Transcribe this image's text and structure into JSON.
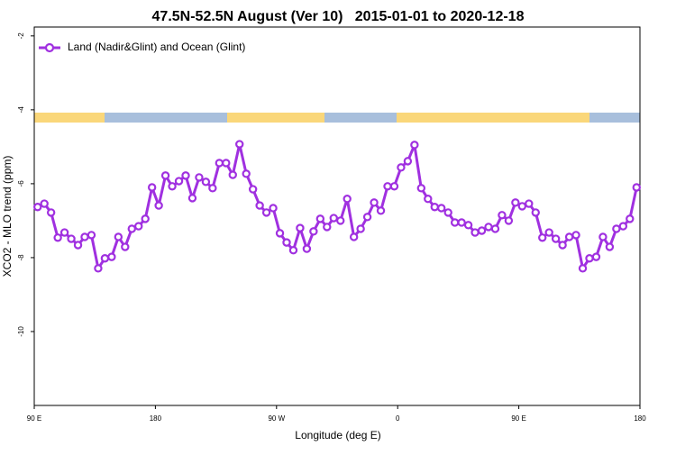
{
  "chart_data": {
    "type": "line",
    "title": "47.5N-52.5N August (Ver 10)   2015-01-01 to 2020-12-18",
    "x_label": "Longitude (deg E)",
    "y_label": "XCO2 - MLO trend (ppm)",
    "xlim": [
      90,
      540
    ],
    "xticks": [
      {
        "value": 90,
        "label": "90 E"
      },
      180,
      {
        "value": 270,
        "label": "90 W"
      },
      {
        "value": 360,
        "label": "0"
      },
      {
        "value": 450,
        "label": "90 E"
      },
      {
        "value": 540,
        "label": "180"
      }
    ],
    "ylim": [
      -12,
      -1.76
    ],
    "yticks": [
      -2,
      -4,
      -6,
      -8,
      -10
    ],
    "grid": false,
    "legend": "top-left",
    "x": [
      92.5,
      97.5,
      102.5,
      107.5,
      112.5,
      117.5,
      122.5,
      127.5,
      132.5,
      137.5,
      142.5,
      147.5,
      152.5,
      157.5,
      162.5,
      167.5,
      172.5,
      177.5,
      182.5,
      187.5,
      192.5,
      197.5,
      202.5,
      207.5,
      212.5,
      217.5,
      222.5,
      227.5,
      232.5,
      237.5,
      242.5,
      247.5,
      252.5,
      257.5,
      262.5,
      267.5,
      272.5,
      277.5,
      282.5,
      287.5,
      292.5,
      297.5,
      302.5,
      307.5,
      312.5,
      317.5,
      322.5,
      327.5,
      332.5,
      337.5,
      342.5,
      347.5,
      352.5,
      357.5,
      362.5,
      367.5,
      372.5,
      377.5,
      382.5,
      387.5,
      392.5,
      397.5,
      402.5,
      407.5,
      412.5,
      417.5,
      422.5,
      427.5,
      432.5,
      437.5,
      442.5,
      447.5,
      452.5,
      457.5,
      462.5,
      467.5,
      472.5,
      477.5,
      482.5,
      487.5,
      492.5,
      497.5,
      502.5,
      507.5,
      512.5,
      517.5,
      522.5,
      527.5,
      532.5,
      537.5
    ],
    "series": [
      {
        "name": "Land (Nadir&Glint) and Ocean (Glint)",
        "color": "#a030e0",
        "values": [
          -6.63,
          -6.54,
          -6.78,
          -7.46,
          -7.32,
          -7.49,
          -7.66,
          -7.44,
          -7.39,
          -8.29,
          -8.02,
          -7.98,
          -7.44,
          -7.71,
          -7.22,
          -7.15,
          -6.95,
          -6.1,
          -6.59,
          -5.78,
          -6.07,
          -5.93,
          -5.78,
          -6.39,
          -5.83,
          -5.95,
          -6.12,
          -5.44,
          -5.44,
          -5.76,
          -4.93,
          -5.73,
          -6.15,
          -6.59,
          -6.78,
          -6.66,
          -7.34,
          -7.59,
          -7.8,
          -7.2,
          -7.76,
          -7.29,
          -6.95,
          -7.17,
          -6.93,
          -7.0,
          -6.41,
          -7.44,
          -7.22,
          -6.9,
          -6.51,
          -6.73,
          -6.07,
          -6.07,
          -5.56,
          -5.39,
          -4.95,
          -6.12,
          -6.41,
          -6.63,
          -6.66,
          -6.78,
          -7.05,
          -7.05,
          -7.12,
          -7.32,
          -7.27,
          -7.17,
          -7.22,
          -6.85,
          -7.0,
          -6.51,
          -6.61,
          -6.54,
          -6.78,
          -7.46,
          -7.32,
          -7.49,
          -7.66,
          -7.44,
          -7.39,
          -8.29,
          -8.02,
          -7.98,
          -7.44,
          -7.71,
          -7.22,
          -7.15,
          -6.95,
          -6.1
        ]
      }
    ]
  }
}
